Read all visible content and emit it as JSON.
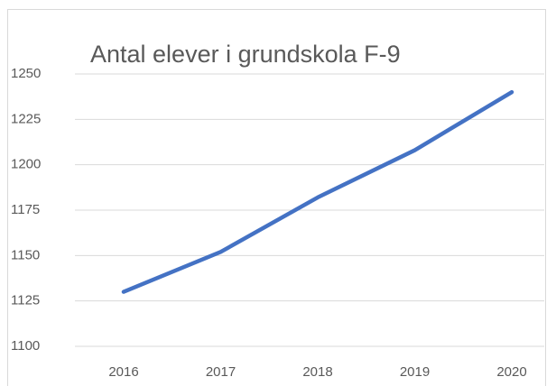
{
  "chart_data": {
    "type": "line",
    "title": "Antal elever i grundskola F-9",
    "categories": [
      "2016",
      "2017",
      "2018",
      "2019",
      "2020"
    ],
    "values": [
      1130,
      1152,
      1182,
      1208,
      1240
    ],
    "color": "#4472c4",
    "ylim": [
      1100,
      1250
    ],
    "yticks": [
      1100,
      1125,
      1150,
      1175,
      1200,
      1225,
      1250
    ],
    "grid": true
  }
}
